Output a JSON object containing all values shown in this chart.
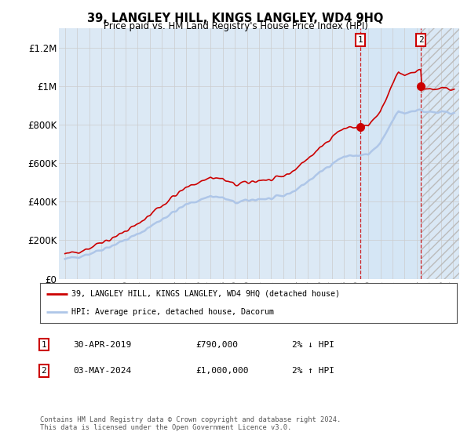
{
  "title": "39, LANGLEY HILL, KINGS LANGLEY, WD4 9HQ",
  "subtitle": "Price paid vs. HM Land Registry's House Price Index (HPI)",
  "legend_line1": "39, LANGLEY HILL, KINGS LANGLEY, WD4 9HQ (detached house)",
  "legend_line2": "HPI: Average price, detached house, Dacorum",
  "annotation1_label": "1",
  "annotation1_date": "30-APR-2019",
  "annotation1_price": "£790,000",
  "annotation1_hpi": "2% ↓ HPI",
  "annotation2_label": "2",
  "annotation2_date": "03-MAY-2024",
  "annotation2_price": "£1,000,000",
  "annotation2_hpi": "2% ↑ HPI",
  "footer": "Contains HM Land Registry data © Crown copyright and database right 2024.\nThis data is licensed under the Open Government Licence v3.0.",
  "hpi_color": "#aec6e8",
  "price_color": "#cc0000",
  "marker_color": "#cc0000",
  "sale1_x": 2019.33,
  "sale1_y": 790000,
  "sale2_x": 2024.34,
  "sale2_y": 1000000,
  "ylim_min": 0,
  "ylim_max": 1300000,
  "xlim_min": 1994.5,
  "xlim_max": 2027.5,
  "shade_start": 2024.34,
  "shade_end": 2027.5,
  "shade1_start": 2019.0,
  "shade1_end": 2024.34,
  "yticks": [
    0,
    200000,
    400000,
    600000,
    800000,
    1000000,
    1200000
  ],
  "ytick_labels": [
    "£0",
    "£200K",
    "£400K",
    "£600K",
    "£800K",
    "£1M",
    "£1.2M"
  ],
  "xticks": [
    1995,
    1996,
    1997,
    1998,
    1999,
    2000,
    2001,
    2002,
    2003,
    2004,
    2005,
    2006,
    2007,
    2008,
    2009,
    2010,
    2011,
    2012,
    2013,
    2014,
    2015,
    2016,
    2017,
    2018,
    2019,
    2020,
    2021,
    2022,
    2023,
    2024,
    2025,
    2026,
    2027
  ],
  "grid_color": "#cccccc",
  "background_color": "#ffffff",
  "plot_bg_color": "#dce9f5"
}
